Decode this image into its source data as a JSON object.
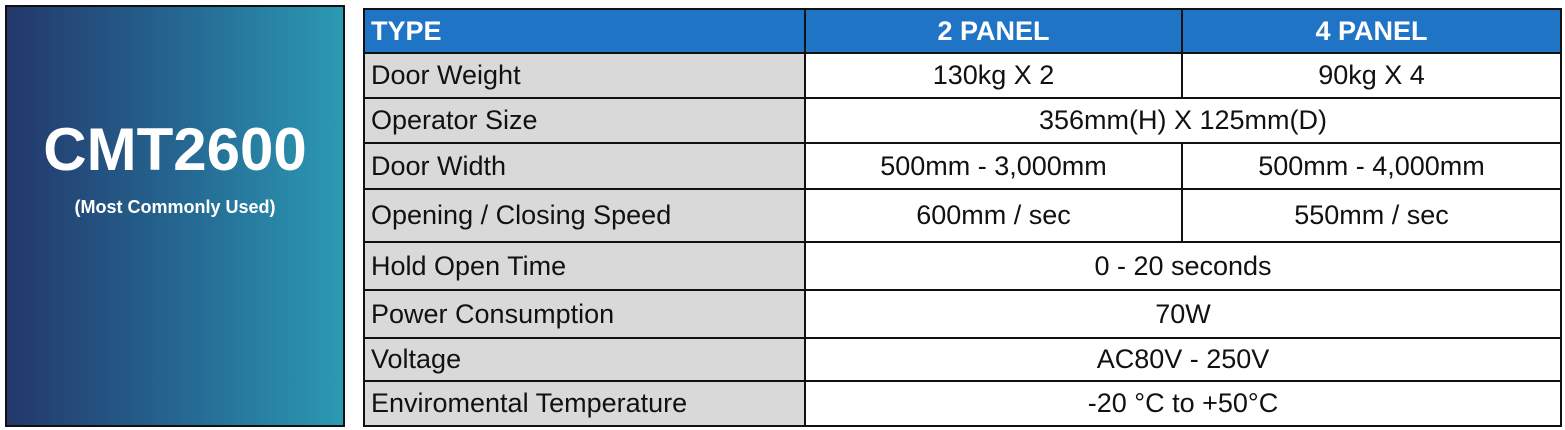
{
  "panel": {
    "title": "CMT2600",
    "subtitle": "(Most Commonly Used)"
  },
  "table": {
    "header": [
      "TYPE",
      "2 PANEL",
      "4 PANEL"
    ],
    "rows": [
      [
        "Door Weight",
        "130kg X 2",
        "90kg X 4"
      ],
      [
        "Operator Size",
        "356mm(H) X 125mm(D)"
      ],
      [
        "Door Width",
        "500mm - 3,000mm",
        "500mm - 4,000mm"
      ],
      [
        "Opening / Closing Speed",
        "600mm / sec",
        "550mm / sec"
      ],
      [
        "Hold Open Time",
        "0 - 20 seconds"
      ],
      [
        "Power Consumption",
        "70W"
      ],
      [
        "Voltage",
        "AC80V - 250V"
      ],
      [
        "Enviromental Temperature",
        "-20 °C to +50°C"
      ]
    ]
  }
}
